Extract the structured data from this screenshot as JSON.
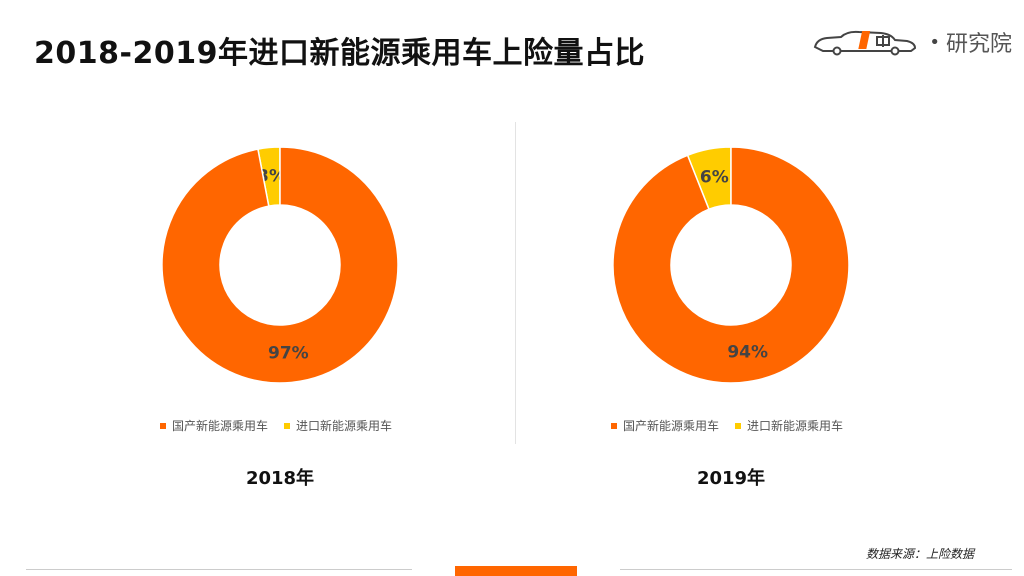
{
  "title": "2018-2019年进口新能源乘用车上险量占比",
  "logo": {
    "brand_text": "研究院"
  },
  "source": "数据来源：上险数据",
  "colors": {
    "domestic": "#FF6600",
    "imported": "#FFCC00",
    "accent": "#FF6600"
  },
  "chart_data": [
    {
      "type": "pie",
      "donut": true,
      "title": "2018年",
      "categories": [
        "国产新能源乘用车",
        "进口新能源乘用车"
      ],
      "values": [
        97,
        3
      ],
      "labels": [
        "97%",
        "3%"
      ],
      "legend": "bottom"
    },
    {
      "type": "pie",
      "donut": true,
      "title": "2019年",
      "categories": [
        "国产新能源乘用车",
        "进口新能源乘用车"
      ],
      "values": [
        94,
        6
      ],
      "labels": [
        "94%",
        "6%"
      ],
      "legend": "bottom"
    }
  ]
}
